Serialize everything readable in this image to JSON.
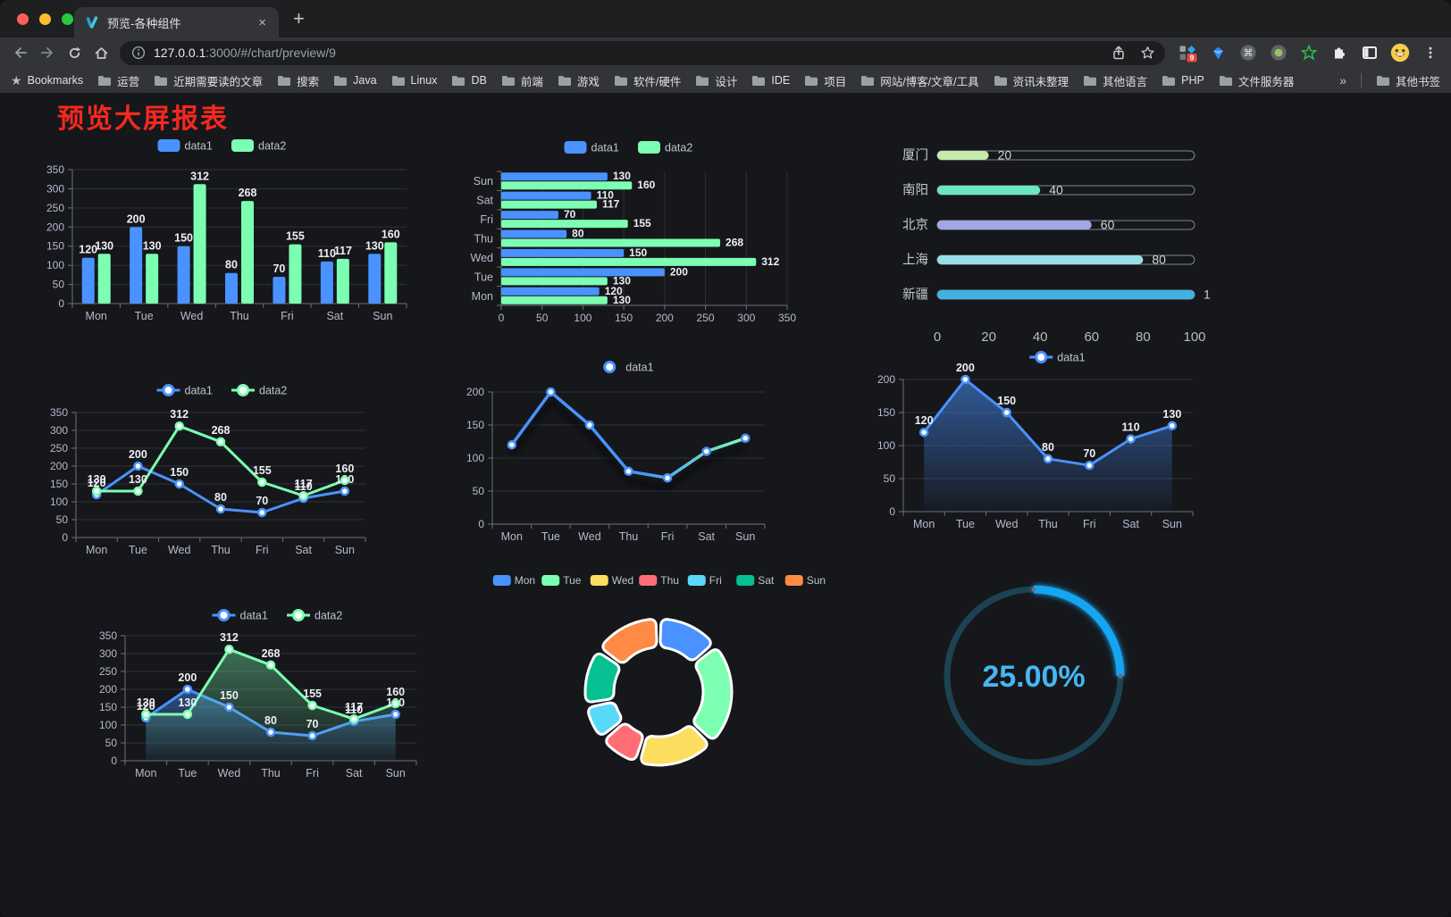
{
  "browser": {
    "tab": {
      "title": "预览-各种组件"
    },
    "icons": {
      "close": "×",
      "new_tab": "+",
      "overflow": "»",
      "bookmarks_star": "★",
      "command": "⌘"
    },
    "url": {
      "host": "127.0.0.1",
      "rest": ":3000/#/chart/preview/9"
    },
    "extension_badge": "9",
    "bookmarks_label": "Bookmarks",
    "bookmarks": [
      "运营",
      "近期需要读的文章",
      "搜索",
      "Java",
      "Linux",
      "DB",
      "前端",
      "游戏",
      "软件/硬件",
      "设计",
      "IDE",
      "项目",
      "网站/博客/文章/工具",
      "资讯未整理",
      "其他语言",
      "PHP",
      "文件服务器"
    ],
    "other_bookmarks": "其他书签"
  },
  "page": {
    "title": "预览大屏报表"
  },
  "chart_data": [
    {
      "id": "bar-vertical",
      "type": "bar",
      "categories": [
        "Mon",
        "Tue",
        "Wed",
        "Thu",
        "Fri",
        "Sat",
        "Sun"
      ],
      "series": [
        {
          "name": "data1",
          "color": "#4992ff",
          "values": [
            120,
            200,
            150,
            80,
            70,
            110,
            130
          ]
        },
        {
          "name": "data2",
          "color": "#7cffb2",
          "values": [
            130,
            130,
            312,
            268,
            155,
            117,
            160
          ]
        }
      ],
      "ylim": [
        0,
        350
      ],
      "ytick_step": 50,
      "legend_position": "top",
      "grid": true,
      "value_labels": true
    },
    {
      "id": "bar-horizontal",
      "type": "bar",
      "orientation": "horizontal",
      "categories": [
        "Mon",
        "Tue",
        "Wed",
        "Thu",
        "Fri",
        "Sat",
        "Sun"
      ],
      "series": [
        {
          "name": "data1",
          "color": "#4992ff",
          "values": [
            120,
            200,
            150,
            80,
            70,
            110,
            130
          ]
        },
        {
          "name": "data2",
          "color": "#7cffb2",
          "values": [
            130,
            130,
            312,
            268,
            155,
            117,
            160
          ]
        }
      ],
      "xlim": [
        0,
        350
      ],
      "xtick_step": 50,
      "legend_position": "top",
      "grid": true,
      "value_labels": true
    },
    {
      "id": "progress-bars",
      "type": "bar",
      "style": "capsule-progress",
      "rows": [
        {
          "label": "厦门",
          "value": 20,
          "color": "#c4ebad"
        },
        {
          "label": "南阳",
          "value": 40,
          "color": "#6be6c1"
        },
        {
          "label": "北京",
          "value": 60,
          "color": "#a0a7e6"
        },
        {
          "label": "上海",
          "value": 80,
          "color": "#96dee8"
        },
        {
          "label": "新疆",
          "value": 100,
          "color": "#3fb1e3"
        }
      ],
      "xlim": [
        0,
        100
      ],
      "xticks": [
        0,
        20,
        40,
        60,
        80,
        100
      ]
    },
    {
      "id": "line-two",
      "type": "line",
      "categories": [
        "Mon",
        "Tue",
        "Wed",
        "Thu",
        "Fri",
        "Sat",
        "Sun"
      ],
      "series": [
        {
          "name": "data1",
          "color": "#4992ff",
          "values": [
            120,
            200,
            150,
            80,
            70,
            110,
            130
          ]
        },
        {
          "name": "data2",
          "color": "#7cffb2",
          "values": [
            130,
            130,
            312,
            268,
            155,
            117,
            160
          ]
        }
      ],
      "ylim": [
        0,
        350
      ],
      "ytick_step": 50,
      "legend_position": "top",
      "markers": true,
      "value_labels": true
    },
    {
      "id": "line-gradient",
      "type": "line",
      "categories": [
        "Mon",
        "Tue",
        "Wed",
        "Thu",
        "Fri",
        "Sat",
        "Sun"
      ],
      "series": [
        {
          "name": "data1",
          "color": "#4992ff",
          "color_gradient": [
            "#4992ff",
            "#7cffb2"
          ],
          "values": [
            120,
            200,
            150,
            80,
            70,
            110,
            130
          ]
        }
      ],
      "ylim": [
        0,
        200
      ],
      "ytick_step": 50,
      "legend_position": "top",
      "markers": true,
      "value_labels": false,
      "shadow": true
    },
    {
      "id": "line-area-single",
      "type": "area",
      "categories": [
        "Mon",
        "Tue",
        "Wed",
        "Thu",
        "Fri",
        "Sat",
        "Sun"
      ],
      "series": [
        {
          "name": "data1",
          "color": "#4992ff",
          "values": [
            120,
            200,
            150,
            80,
            70,
            110,
            130
          ]
        }
      ],
      "ylim": [
        0,
        200
      ],
      "ytick_step": 50,
      "legend_position": "top",
      "markers": true,
      "value_labels": true
    },
    {
      "id": "line-area-two",
      "type": "area",
      "categories": [
        "Mon",
        "Tue",
        "Wed",
        "Thu",
        "Fri",
        "Sat",
        "Sun"
      ],
      "series": [
        {
          "name": "data1",
          "color": "#4992ff",
          "values": [
            120,
            200,
            150,
            80,
            70,
            110,
            130
          ]
        },
        {
          "name": "data2",
          "color": "#7cffb2",
          "values": [
            130,
            130,
            312,
            268,
            155,
            117,
            160
          ]
        }
      ],
      "ylim": [
        0,
        350
      ],
      "ytick_step": 50,
      "legend_position": "top",
      "markers": true,
      "value_labels": true
    },
    {
      "id": "donut",
      "type": "pie",
      "legend_position": "top",
      "categories": [
        "Mon",
        "Tue",
        "Wed",
        "Thu",
        "Fri",
        "Sat",
        "Sun"
      ],
      "values": [
        120,
        200,
        150,
        80,
        70,
        110,
        130
      ],
      "colors": [
        "#4992ff",
        "#7cffb2",
        "#fddd60",
        "#ff6e76",
        "#58d9f9",
        "#05c091",
        "#ff8a45"
      ]
    },
    {
      "id": "gauge",
      "type": "gauge",
      "value": 25,
      "label": "25.00%",
      "arc_color": "#14a5f0",
      "track_color": "#1c4353",
      "text_color": "#45b7f4"
    }
  ]
}
